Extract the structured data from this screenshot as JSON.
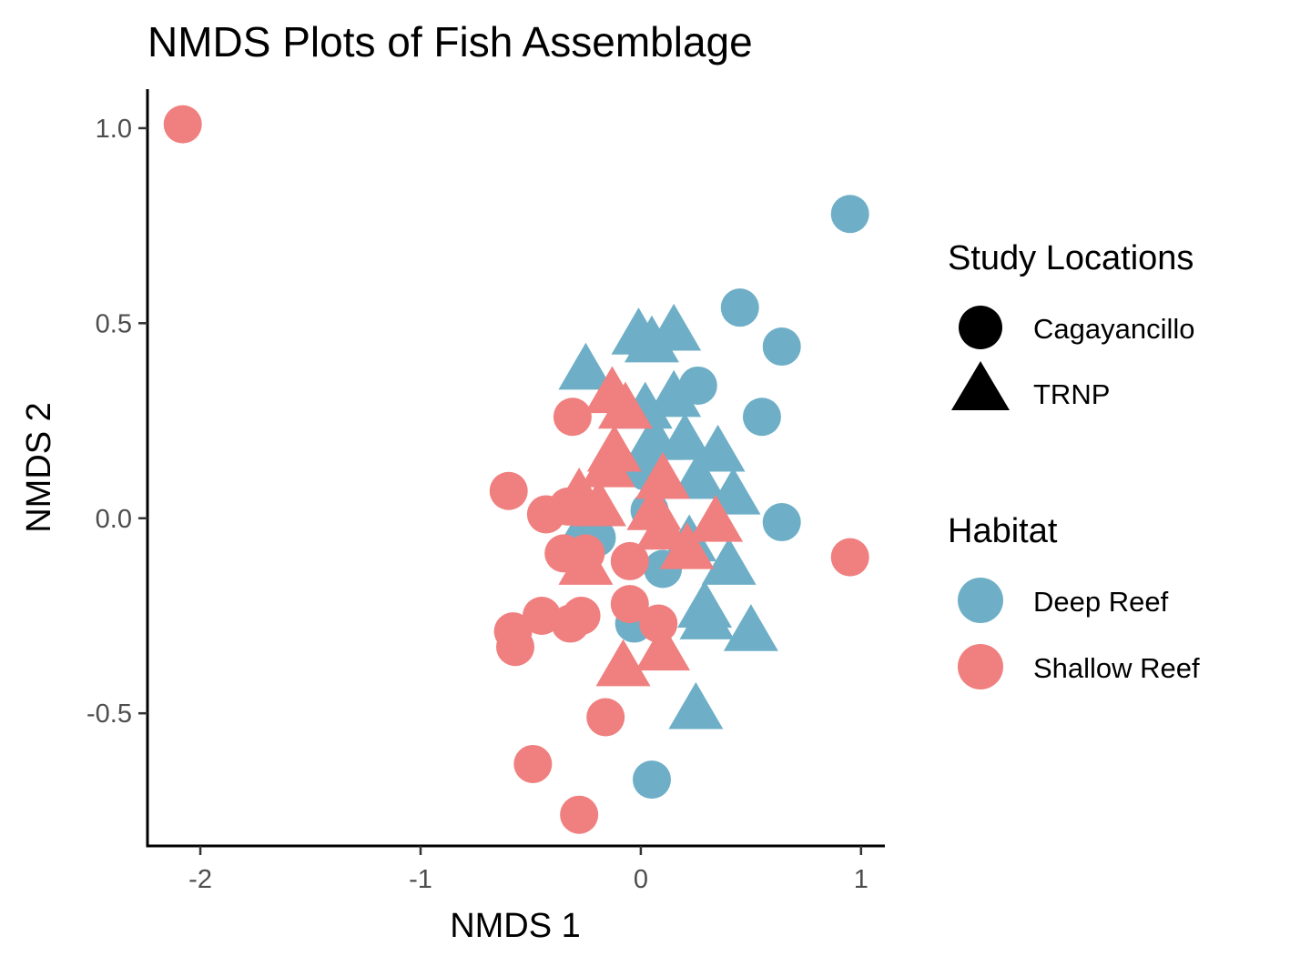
{
  "chart_data": {
    "type": "scatter",
    "title": "NMDS Plots of Fish Assemblage",
    "xlabel": "NMDS 1",
    "ylabel": "NMDS 2",
    "xlim": [
      -2.24,
      1.1
    ],
    "ylim": [
      -0.84,
      1.1
    ],
    "x_ticks": [
      {
        "value": -2,
        "label": "-2"
      },
      {
        "value": -1,
        "label": "-1"
      },
      {
        "value": 0,
        "label": "0"
      },
      {
        "value": 1,
        "label": "1"
      }
    ],
    "y_ticks": [
      {
        "value": -0.5,
        "label": "-0.5"
      },
      {
        "value": 0,
        "label": "0.0"
      },
      {
        "value": 0.5,
        "label": "0.5"
      },
      {
        "value": 1,
        "label": "1.0"
      }
    ],
    "grid": false,
    "legend_position": "right",
    "colors": {
      "Deep Reef": "#6eafc7",
      "Shallow Reef": "#f07f7f"
    },
    "legends": [
      {
        "title": "Study Locations",
        "entries": [
          {
            "label": "Cagayancillo",
            "shape": "circle",
            "color": "#000000"
          },
          {
            "label": "TRNP",
            "shape": "triangle",
            "color": "#000000"
          }
        ]
      },
      {
        "title": "Habitat",
        "entries": [
          {
            "label": "Deep Reef",
            "shape": "circle",
            "color": "#6eafc7"
          },
          {
            "label": "Shallow Reef",
            "shape": "circle",
            "color": "#f07f7f"
          }
        ]
      }
    ],
    "points": [
      {
        "x": 0.95,
        "y": 0.78,
        "habitat": "Deep Reef",
        "location": "Cagayancillo"
      },
      {
        "x": 0.45,
        "y": 0.54,
        "habitat": "Deep Reef",
        "location": "Cagayancillo"
      },
      {
        "x": 0.64,
        "y": 0.44,
        "habitat": "Deep Reef",
        "location": "Cagayancillo"
      },
      {
        "x": 0.26,
        "y": 0.34,
        "habitat": "Deep Reef",
        "location": "Cagayancillo"
      },
      {
        "x": 0.55,
        "y": 0.26,
        "habitat": "Deep Reef",
        "location": "Cagayancillo"
      },
      {
        "x": 0.64,
        "y": -0.01,
        "habitat": "Deep Reef",
        "location": "Cagayancillo"
      },
      {
        "x": 0.02,
        "y": 0.12,
        "habitat": "Deep Reef",
        "location": "Cagayancillo"
      },
      {
        "x": 0.04,
        "y": 0.02,
        "habitat": "Deep Reef",
        "location": "Cagayancillo"
      },
      {
        "x": 0.1,
        "y": -0.13,
        "habitat": "Deep Reef",
        "location": "Cagayancillo"
      },
      {
        "x": -0.03,
        "y": -0.27,
        "habitat": "Deep Reef",
        "location": "Cagayancillo"
      },
      {
        "x": 0.05,
        "y": -0.67,
        "habitat": "Deep Reef",
        "location": "Cagayancillo"
      },
      {
        "x": -0.2,
        "y": -0.05,
        "habitat": "Deep Reef",
        "location": "Cagayancillo"
      },
      {
        "x": -0.01,
        "y": 0.47,
        "habitat": "Deep Reef",
        "location": "TRNP"
      },
      {
        "x": 0.05,
        "y": 0.45,
        "habitat": "Deep Reef",
        "location": "TRNP"
      },
      {
        "x": 0.15,
        "y": 0.48,
        "habitat": "Deep Reef",
        "location": "TRNP"
      },
      {
        "x": -0.25,
        "y": 0.38,
        "habitat": "Deep Reef",
        "location": "TRNP"
      },
      {
        "x": 0.02,
        "y": 0.28,
        "habitat": "Deep Reef",
        "location": "TRNP"
      },
      {
        "x": 0.15,
        "y": 0.31,
        "habitat": "Deep Reef",
        "location": "TRNP"
      },
      {
        "x": 0.06,
        "y": 0.2,
        "habitat": "Deep Reef",
        "location": "TRNP"
      },
      {
        "x": 0.2,
        "y": 0.2,
        "habitat": "Deep Reef",
        "location": "TRNP"
      },
      {
        "x": 0.35,
        "y": 0.17,
        "habitat": "Deep Reef",
        "location": "TRNP"
      },
      {
        "x": 0.26,
        "y": 0.1,
        "habitat": "Deep Reef",
        "location": "TRNP"
      },
      {
        "x": 0.42,
        "y": 0.06,
        "habitat": "Deep Reef",
        "location": "TRNP"
      },
      {
        "x": 0.22,
        "y": -0.06,
        "habitat": "Deep Reef",
        "location": "TRNP"
      },
      {
        "x": 0.4,
        "y": -0.12,
        "habitat": "Deep Reef",
        "location": "TRNP"
      },
      {
        "x": 0.29,
        "y": -0.23,
        "habitat": "Deep Reef",
        "location": "TRNP"
      },
      {
        "x": 0.3,
        "y": -0.26,
        "habitat": "Deep Reef",
        "location": "TRNP"
      },
      {
        "x": 0.5,
        "y": -0.29,
        "habitat": "Deep Reef",
        "location": "TRNP"
      },
      {
        "x": 0.25,
        "y": -0.49,
        "habitat": "Deep Reef",
        "location": "TRNP"
      },
      {
        "x": -0.24,
        "y": -0.01,
        "habitat": "Deep Reef",
        "location": "TRNP"
      },
      {
        "x": -2.08,
        "y": 1.01,
        "habitat": "Shallow Reef",
        "location": "Cagayancillo"
      },
      {
        "x": 0.95,
        "y": -0.1,
        "habitat": "Shallow Reef",
        "location": "Cagayancillo"
      },
      {
        "x": -0.31,
        "y": 0.26,
        "habitat": "Shallow Reef",
        "location": "Cagayancillo"
      },
      {
        "x": -0.6,
        "y": 0.07,
        "habitat": "Shallow Reef",
        "location": "Cagayancillo"
      },
      {
        "x": -0.43,
        "y": 0.01,
        "habitat": "Shallow Reef",
        "location": "Cagayancillo"
      },
      {
        "x": -0.33,
        "y": 0.03,
        "habitat": "Shallow Reef",
        "location": "Cagayancillo"
      },
      {
        "x": -0.35,
        "y": -0.09,
        "habitat": "Shallow Reef",
        "location": "Cagayancillo"
      },
      {
        "x": -0.25,
        "y": -0.09,
        "habitat": "Shallow Reef",
        "location": "Cagayancillo"
      },
      {
        "x": -0.05,
        "y": -0.11,
        "habitat": "Shallow Reef",
        "location": "Cagayancillo"
      },
      {
        "x": -0.45,
        "y": -0.25,
        "habitat": "Shallow Reef",
        "location": "Cagayancillo"
      },
      {
        "x": -0.32,
        "y": -0.27,
        "habitat": "Shallow Reef",
        "location": "Cagayancillo"
      },
      {
        "x": -0.27,
        "y": -0.25,
        "habitat": "Shallow Reef",
        "location": "Cagayancillo"
      },
      {
        "x": -0.58,
        "y": -0.29,
        "habitat": "Shallow Reef",
        "location": "Cagayancillo"
      },
      {
        "x": -0.57,
        "y": -0.33,
        "habitat": "Shallow Reef",
        "location": "Cagayancillo"
      },
      {
        "x": -0.05,
        "y": -0.22,
        "habitat": "Shallow Reef",
        "location": "Cagayancillo"
      },
      {
        "x": 0.08,
        "y": -0.27,
        "habitat": "Shallow Reef",
        "location": "Cagayancillo"
      },
      {
        "x": -0.16,
        "y": -0.51,
        "habitat": "Shallow Reef",
        "location": "Cagayancillo"
      },
      {
        "x": -0.49,
        "y": -0.63,
        "habitat": "Shallow Reef",
        "location": "Cagayancillo"
      },
      {
        "x": -0.28,
        "y": -0.76,
        "habitat": "Shallow Reef",
        "location": "Cagayancillo"
      },
      {
        "x": -0.13,
        "y": 0.32,
        "habitat": "Shallow Reef",
        "location": "TRNP"
      },
      {
        "x": -0.07,
        "y": 0.28,
        "habitat": "Shallow Reef",
        "location": "TRNP"
      },
      {
        "x": -0.12,
        "y": 0.17,
        "habitat": "Shallow Reef",
        "location": "TRNP"
      },
      {
        "x": -0.15,
        "y": 0.13,
        "habitat": "Shallow Reef",
        "location": "TRNP"
      },
      {
        "x": -0.28,
        "y": 0.06,
        "habitat": "Shallow Reef",
        "location": "TRNP"
      },
      {
        "x": -0.19,
        "y": 0.03,
        "habitat": "Shallow Reef",
        "location": "TRNP"
      },
      {
        "x": 0.1,
        "y": 0.1,
        "habitat": "Shallow Reef",
        "location": "TRNP"
      },
      {
        "x": 0.06,
        "y": 0.02,
        "habitat": "Shallow Reef",
        "location": "TRNP"
      },
      {
        "x": 0.1,
        "y": -0.03,
        "habitat": "Shallow Reef",
        "location": "TRNP"
      },
      {
        "x": 0.34,
        "y": -0.01,
        "habitat": "Shallow Reef",
        "location": "TRNP"
      },
      {
        "x": 0.21,
        "y": -0.08,
        "habitat": "Shallow Reef",
        "location": "TRNP"
      },
      {
        "x": -0.25,
        "y": -0.12,
        "habitat": "Shallow Reef",
        "location": "TRNP"
      },
      {
        "x": -0.08,
        "y": -0.38,
        "habitat": "Shallow Reef",
        "location": "TRNP"
      },
      {
        "x": 0.1,
        "y": -0.34,
        "habitat": "Shallow Reef",
        "location": "TRNP"
      }
    ]
  }
}
